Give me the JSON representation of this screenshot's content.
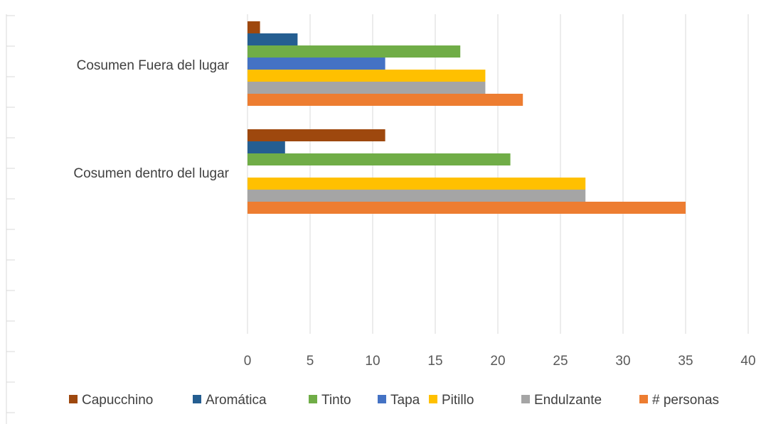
{
  "chart_data": {
    "type": "bar",
    "orientation": "horizontal",
    "categories": [
      "Cosumen Fuera del lugar",
      "Cosumen dentro del lugar"
    ],
    "series": [
      {
        "name": "Capucchino",
        "color": "#9E480E",
        "values": [
          1,
          11
        ]
      },
      {
        "name": "Aromática",
        "color": "#255E91",
        "values": [
          4,
          3
        ]
      },
      {
        "name": "Tinto",
        "color": "#70AD47",
        "values": [
          17,
          21
        ]
      },
      {
        "name": "Tapa",
        "color": "#4472C4",
        "values": [
          11,
          0
        ]
      },
      {
        "name": "Pitillo",
        "color": "#FFC000",
        "values": [
          19,
          27
        ]
      },
      {
        "name": "Endulzante",
        "color": "#A5A5A5",
        "values": [
          19,
          27
        ]
      },
      {
        "name": "# personas",
        "color": "#ED7D31",
        "values": [
          22,
          35
        ]
      }
    ],
    "xlim": [
      0,
      40
    ],
    "x_ticks": [
      0,
      5,
      10,
      15,
      20,
      25,
      30,
      35,
      40
    ],
    "grid": "vertical",
    "legend_position": "bottom",
    "title": "",
    "xlabel": "",
    "ylabel": ""
  }
}
